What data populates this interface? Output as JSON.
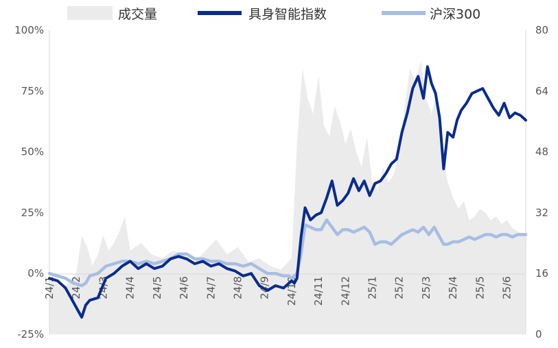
{
  "chart_data": {
    "type": "line",
    "legend": {
      "placement": "top",
      "entries": [
        {
          "label": "成交量",
          "kind": "area",
          "color": "#ebebeb"
        },
        {
          "label": "具身智能指数",
          "kind": "line",
          "color": "#0a2c8c"
        },
        {
          "label": "沪深300",
          "kind": "line",
          "color": "#a7bde3"
        }
      ]
    },
    "y_left": {
      "min": -0.25,
      "max": 1.0,
      "ticks": [
        "100%",
        "75%",
        "50%",
        "25%",
        "0%",
        "-25%"
      ],
      "tick_values": [
        1.0,
        0.75,
        0.5,
        0.25,
        0.0,
        -0.25
      ]
    },
    "y_right": {
      "min": 0,
      "max": 80,
      "ticks": [
        "80",
        "64",
        "48",
        "32",
        "16",
        "0"
      ],
      "tick_values": [
        80,
        64,
        48,
        32,
        16,
        0
      ]
    },
    "x_tick_labels": [
      "24/1",
      "24/2",
      "24/3",
      "24/4",
      "24/5",
      "24/6",
      "24/7",
      "24/8",
      "24/9",
      "24/10",
      "24/11",
      "24/12",
      "25/1",
      "25/2",
      "25/3",
      "25/4",
      "25/5",
      "25/6"
    ],
    "x_range": [
      0,
      17.7
    ],
    "grid": false,
    "series": [
      {
        "name": "具身智能指数",
        "axis": "left",
        "color": "#0a2c8c",
        "x": [
          0,
          0.3,
          0.6,
          0.9,
          1.05,
          1.2,
          1.35,
          1.5,
          1.8,
          2.1,
          2.4,
          2.7,
          3.0,
          3.3,
          3.6,
          3.9,
          4.2,
          4.5,
          4.8,
          5.1,
          5.4,
          5.7,
          6.0,
          6.3,
          6.6,
          6.9,
          7.2,
          7.5,
          7.8,
          8.1,
          8.4,
          8.7,
          8.9,
          9.0,
          9.1,
          9.2,
          9.35,
          9.5,
          9.7,
          9.9,
          10.1,
          10.3,
          10.5,
          10.7,
          10.9,
          11.1,
          11.3,
          11.5,
          11.7,
          11.9,
          12.1,
          12.3,
          12.5,
          12.7,
          12.9,
          13.1,
          13.3,
          13.5,
          13.7,
          13.9,
          14.05,
          14.2,
          14.35,
          14.5,
          14.65,
          14.8,
          15.0,
          15.15,
          15.3,
          15.5,
          15.7,
          15.9,
          16.1,
          16.3,
          16.5,
          16.7,
          16.9,
          17.1,
          17.3,
          17.5,
          17.7
        ],
        "values": [
          -0.02,
          -0.03,
          -0.06,
          -0.12,
          -0.15,
          -0.18,
          -0.13,
          -0.11,
          -0.1,
          -0.02,
          0.0,
          0.03,
          0.05,
          0.02,
          0.04,
          0.02,
          0.03,
          0.06,
          0.07,
          0.06,
          0.04,
          0.05,
          0.03,
          0.04,
          0.02,
          0.01,
          -0.01,
          0.0,
          -0.05,
          -0.07,
          -0.05,
          -0.06,
          -0.04,
          -0.03,
          -0.04,
          -0.02,
          0.15,
          0.27,
          0.22,
          0.24,
          0.25,
          0.31,
          0.38,
          0.28,
          0.3,
          0.33,
          0.39,
          0.34,
          0.38,
          0.32,
          0.37,
          0.38,
          0.41,
          0.45,
          0.47,
          0.58,
          0.66,
          0.76,
          0.81,
          0.72,
          0.85,
          0.78,
          0.74,
          0.64,
          0.43,
          0.58,
          0.56,
          0.63,
          0.67,
          0.7,
          0.74,
          0.75,
          0.76,
          0.72,
          0.68,
          0.65,
          0.7,
          0.64,
          0.66,
          0.65,
          0.63
        ]
      },
      {
        "name": "沪深300",
        "axis": "left",
        "color": "#a7bde3",
        "x": [
          0,
          0.3,
          0.6,
          0.9,
          1.2,
          1.35,
          1.5,
          1.8,
          2.1,
          2.4,
          2.7,
          3.0,
          3.3,
          3.6,
          3.9,
          4.2,
          4.5,
          4.8,
          5.1,
          5.4,
          5.7,
          6.0,
          6.3,
          6.6,
          6.9,
          7.2,
          7.5,
          7.8,
          8.1,
          8.4,
          8.7,
          8.9,
          9.0,
          9.1,
          9.2,
          9.35,
          9.5,
          9.7,
          9.9,
          10.1,
          10.3,
          10.5,
          10.7,
          10.9,
          11.1,
          11.3,
          11.5,
          11.7,
          11.9,
          12.1,
          12.3,
          12.5,
          12.7,
          12.9,
          13.1,
          13.3,
          13.5,
          13.7,
          13.9,
          14.1,
          14.3,
          14.5,
          14.65,
          14.8,
          15.0,
          15.2,
          15.4,
          15.6,
          15.8,
          16.0,
          16.2,
          16.4,
          16.6,
          16.8,
          17.0,
          17.2,
          17.4,
          17.7
        ],
        "values": [
          0.0,
          -0.01,
          -0.02,
          -0.04,
          -0.05,
          -0.04,
          -0.01,
          0.0,
          0.03,
          0.04,
          0.05,
          0.05,
          0.04,
          0.05,
          0.04,
          0.05,
          0.06,
          0.08,
          0.08,
          0.06,
          0.06,
          0.05,
          0.05,
          0.04,
          0.04,
          0.03,
          0.04,
          0.02,
          0.0,
          0.0,
          -0.01,
          -0.01,
          -0.02,
          -0.01,
          0.0,
          0.08,
          0.2,
          0.19,
          0.18,
          0.18,
          0.22,
          0.19,
          0.16,
          0.18,
          0.18,
          0.17,
          0.18,
          0.19,
          0.17,
          0.12,
          0.13,
          0.13,
          0.12,
          0.14,
          0.16,
          0.17,
          0.18,
          0.17,
          0.19,
          0.16,
          0.19,
          0.15,
          0.12,
          0.12,
          0.13,
          0.13,
          0.14,
          0.15,
          0.14,
          0.15,
          0.16,
          0.16,
          0.15,
          0.16,
          0.16,
          0.15,
          0.16,
          0.16
        ]
      },
      {
        "name": "成交量",
        "axis": "right",
        "kind": "area",
        "color": "#ebebeb",
        "x": [
          0,
          0.5,
          1.0,
          1.2,
          1.4,
          1.6,
          1.8,
          2.0,
          2.2,
          2.4,
          2.6,
          2.8,
          3.0,
          3.4,
          3.8,
          4.2,
          4.6,
          5.0,
          5.4,
          5.8,
          6.2,
          6.6,
          7.0,
          7.4,
          7.8,
          8.2,
          8.6,
          9.0,
          9.2,
          9.4,
          9.6,
          9.8,
          10.0,
          10.2,
          10.4,
          10.6,
          10.8,
          11.0,
          11.2,
          11.4,
          11.6,
          11.8,
          12.0,
          12.2,
          12.4,
          12.6,
          12.8,
          13.0,
          13.2,
          13.4,
          13.6,
          13.8,
          14.0,
          14.2,
          14.4,
          14.6,
          14.8,
          15.0,
          15.2,
          15.4,
          15.6,
          15.8,
          16.0,
          16.2,
          16.4,
          16.6,
          16.8,
          17.0,
          17.2,
          17.4,
          17.7
        ],
        "values": [
          15,
          12,
          16,
          26,
          23,
          18,
          21,
          26,
          22,
          24,
          27,
          31,
          22,
          24,
          21,
          20,
          22,
          21,
          19,
          22,
          25,
          21,
          23,
          19,
          20,
          18,
          17,
          20,
          50,
          70,
          62,
          58,
          68,
          55,
          52,
          60,
          56,
          50,
          54,
          48,
          44,
          52,
          40,
          38,
          44,
          40,
          42,
          48,
          60,
          70,
          66,
          72,
          62,
          58,
          64,
          48,
          40,
          36,
          33,
          35,
          30,
          31,
          33,
          32,
          30,
          31,
          29,
          30,
          28,
          27,
          26
        ]
      }
    ]
  }
}
